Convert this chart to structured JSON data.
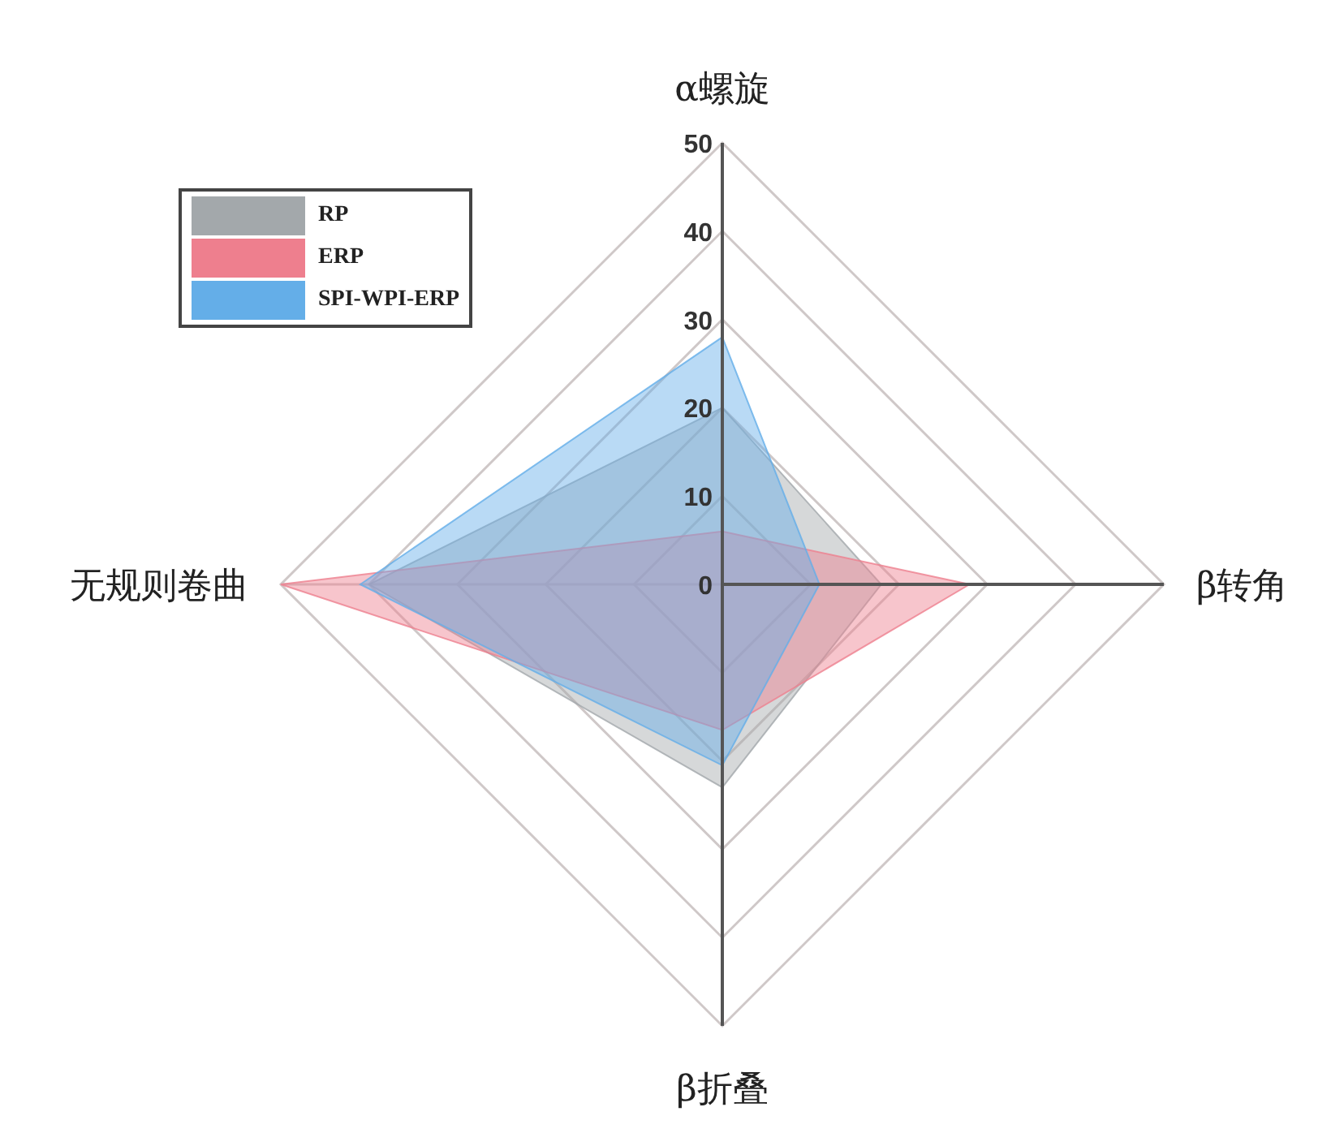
{
  "chart_data": {
    "type": "radar",
    "categories": [
      "α螺旋",
      "β转角",
      "β折叠",
      "无规则卷曲"
    ],
    "series": [
      {
        "name": "RP",
        "color": "#a3a8ab",
        "values": [
          20,
          18,
          23,
          40
        ]
      },
      {
        "name": "ERP",
        "color": "#ee7f8e",
        "values": [
          6,
          28,
          16.5,
          50
        ]
      },
      {
        "name": "SPI-WPI-ERP",
        "color": "#64aee8",
        "values": [
          28,
          11,
          20.5,
          41
        ]
      }
    ],
    "ylim": [
      0,
      50
    ],
    "yticks": [
      0,
      10,
      20,
      30,
      40,
      50
    ],
    "legend": "top left",
    "grid": true
  }
}
